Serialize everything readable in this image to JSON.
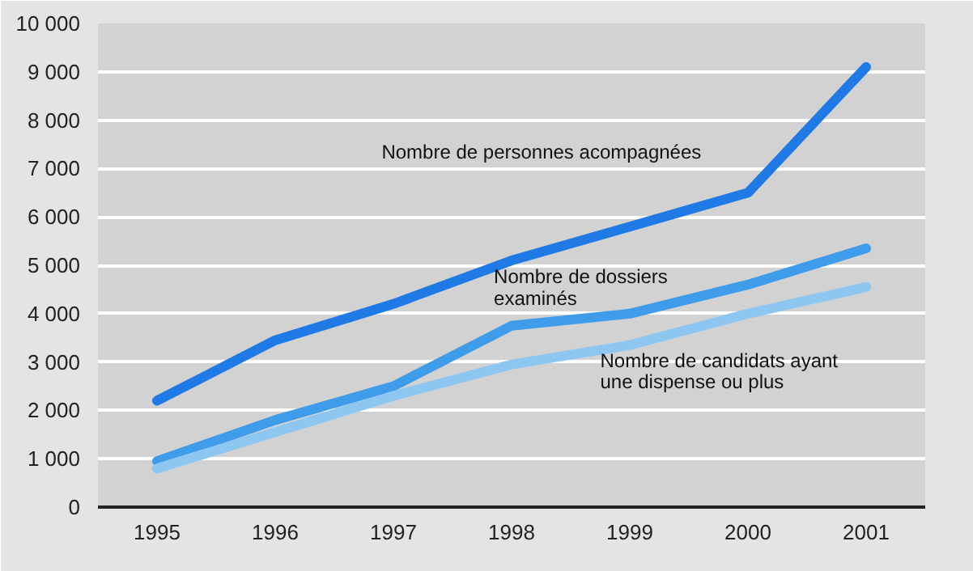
{
  "chart_data": {
    "type": "line",
    "categories": [
      "1995",
      "1996",
      "1997",
      "1998",
      "1999",
      "2000",
      "2001"
    ],
    "series": [
      {
        "name": "Nombre de personnes acompagnées",
        "color": "#1f7ae6",
        "values": [
          2200,
          3450,
          4200,
          5100,
          5800,
          6500,
          9100
        ]
      },
      {
        "name": "Nombre de dossiers examinés",
        "color": "#3f9ceb",
        "values": [
          950,
          1800,
          2500,
          3750,
          4000,
          4600,
          5350
        ]
      },
      {
        "name": "Nombre de candidats ayant une dispense ou plus",
        "color": "#8ec6f2",
        "values": [
          800,
          1550,
          2300,
          2950,
          3350,
          4000,
          4550
        ]
      }
    ],
    "ylim": [
      0,
      10000
    ],
    "yticks": [
      0,
      {
        "value": 1000,
        "label": "1 000"
      },
      {
        "value": 2000,
        "label": "2 000"
      },
      {
        "value": 3000,
        "label": "3 000"
      },
      {
        "value": 4000,
        "label": "4 000"
      },
      {
        "value": 5000,
        "label": "5 000"
      },
      {
        "value": 6000,
        "label": "6 000"
      },
      {
        "value": 7000,
        "label": "7 000"
      },
      {
        "value": 8000,
        "label": "8 000"
      },
      {
        "value": 9000,
        "label": "9 000"
      },
      {
        "value": 10000,
        "label": "10 000"
      }
    ],
    "grid": "y",
    "legend": false,
    "marker": "none",
    "line_style": "solid"
  }
}
